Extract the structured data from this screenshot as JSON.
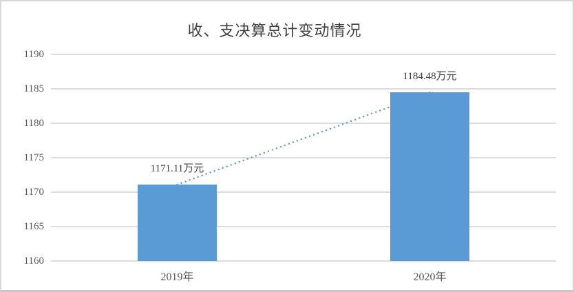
{
  "window": {
    "background": "#ffffff",
    "border_color_top": "#d8d8d8",
    "border_color_bottom": "#c6c6c6"
  },
  "chart_data": {
    "type": "bar",
    "title": "收、支决算总计变动情况",
    "categories": [
      "2019年",
      "2020年"
    ],
    "values": [
      1171.11,
      1184.48
    ],
    "data_labels": [
      "1171.11万元",
      "1184.48万元"
    ],
    "unit": "万元",
    "xlabel": "",
    "ylabel": "",
    "ylim": [
      1160,
      1190
    ],
    "ytick_step": 5,
    "yticks": [
      1190,
      1185,
      1180,
      1175,
      1170,
      1165,
      1160
    ],
    "grid": true,
    "legend": "none",
    "bar_color": "#5b9bd5",
    "gridline_color": "#dcdcdc",
    "tick_label_color": "#595959",
    "title_color": "#3f3f3f",
    "data_label_color": "#404040",
    "trendline": {
      "style": "dotted",
      "color": "#5b9bd5",
      "from_category": "2019年",
      "to_category": "2020年"
    }
  }
}
